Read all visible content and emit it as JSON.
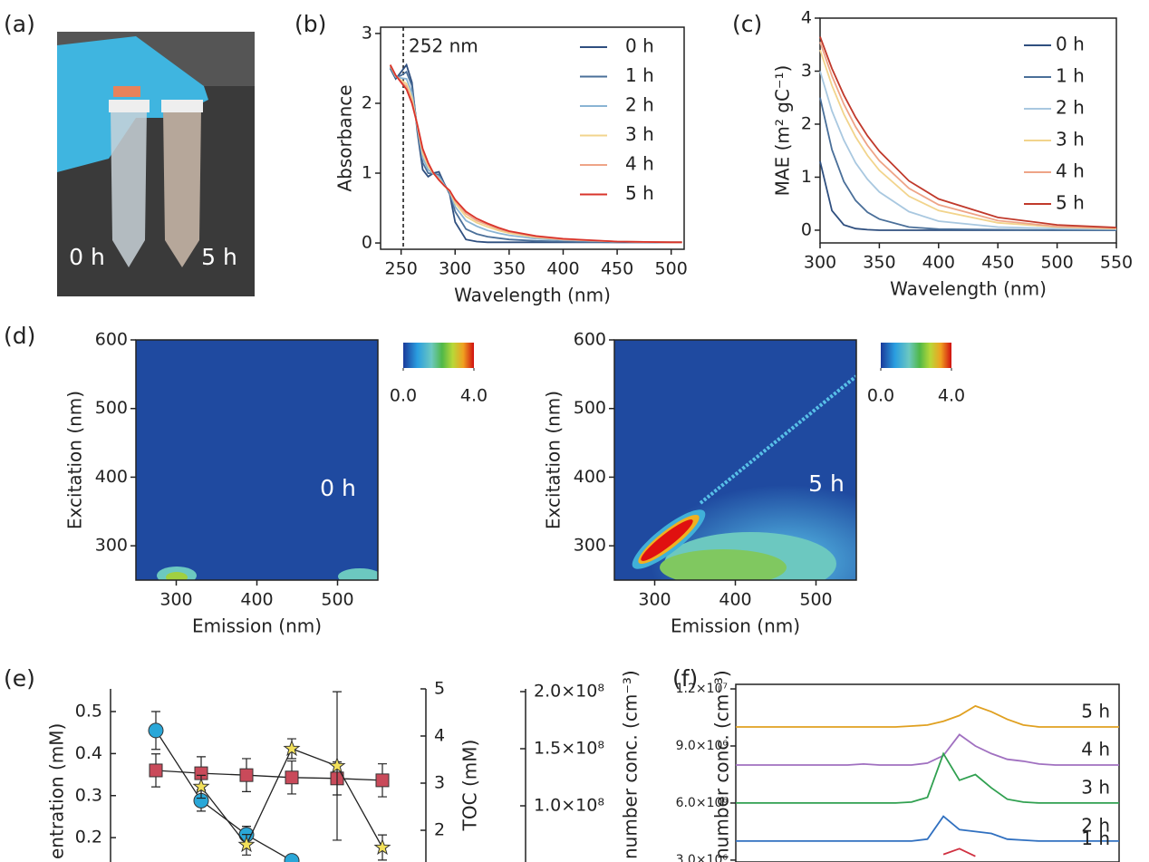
{
  "photo": {
    "panel": "(a)",
    "labels": [
      "0 h",
      "5 h"
    ]
  },
  "chart_data": [
    {
      "type": "line",
      "panel": "(b)",
      "xlabel": "Wavelength (nm)",
      "ylabel": "Absorbance",
      "annotation": "252 nm",
      "marker_line": 252,
      "x": [
        240,
        245,
        250,
        255,
        260,
        265,
        270,
        275,
        280,
        285,
        290,
        295,
        300,
        310,
        320,
        330,
        340,
        350,
        375,
        400,
        450,
        500,
        510
      ],
      "xlim": [
        231,
        512
      ],
      "xticks": [
        250,
        300,
        350,
        400,
        450,
        500
      ],
      "ylim": [
        -0.09,
        3.09
      ],
      "yticks": [
        0,
        1,
        2,
        3
      ],
      "series": [
        {
          "name": "0 h",
          "color": "#2f4f7f",
          "values": [
            2.5,
            2.35,
            2.45,
            2.55,
            2.3,
            1.6,
            1.05,
            0.95,
            1.0,
            1.02,
            0.85,
            0.7,
            0.3,
            0.05,
            0.02,
            0.01,
            0.01,
            0.01,
            0.01,
            0.01,
            0.01,
            0.01,
            0.01
          ]
        },
        {
          "name": "1 h",
          "color": "#4a6f99",
          "values": [
            2.52,
            2.37,
            2.4,
            2.45,
            2.25,
            1.65,
            1.15,
            1.0,
            0.99,
            0.98,
            0.84,
            0.72,
            0.45,
            0.2,
            0.13,
            0.09,
            0.07,
            0.05,
            0.03,
            0.02,
            0.01,
            0.01,
            0.01
          ]
        },
        {
          "name": "2 h",
          "color": "#8ab4d4",
          "values": [
            2.53,
            2.38,
            2.36,
            2.35,
            2.15,
            1.66,
            1.22,
            1.05,
            0.99,
            0.95,
            0.83,
            0.73,
            0.52,
            0.32,
            0.24,
            0.18,
            0.14,
            0.11,
            0.06,
            0.04,
            0.02,
            0.01,
            0.01
          ]
        },
        {
          "name": "3 h",
          "color": "#f2d48c",
          "values": [
            2.54,
            2.39,
            2.33,
            2.28,
            2.08,
            1.68,
            1.28,
            1.1,
            0.99,
            0.92,
            0.82,
            0.74,
            0.57,
            0.38,
            0.29,
            0.23,
            0.18,
            0.14,
            0.08,
            0.05,
            0.02,
            0.01,
            0.01
          ]
        },
        {
          "name": "4 h",
          "color": "#eea487",
          "values": [
            2.55,
            2.4,
            2.31,
            2.24,
            2.03,
            1.69,
            1.32,
            1.13,
            1.0,
            0.91,
            0.82,
            0.75,
            0.6,
            0.42,
            0.32,
            0.26,
            0.2,
            0.16,
            0.09,
            0.05,
            0.02,
            0.01,
            0.01
          ]
        },
        {
          "name": "5 h",
          "color": "#d9342b",
          "values": [
            2.55,
            2.4,
            2.3,
            2.2,
            2.0,
            1.7,
            1.35,
            1.15,
            1.0,
            0.9,
            0.82,
            0.75,
            0.62,
            0.45,
            0.35,
            0.28,
            0.22,
            0.17,
            0.1,
            0.06,
            0.02,
            0.01,
            0.01
          ]
        }
      ]
    },
    {
      "type": "line",
      "panel": "(c)",
      "xlabel": "Wavelength (nm)",
      "ylabel": "MAE (m² gC⁻¹)",
      "x": [
        300,
        310,
        320,
        330,
        340,
        350,
        375,
        400,
        450,
        500,
        550
      ],
      "xlim": [
        300,
        550
      ],
      "xticks": [
        300,
        350,
        400,
        450,
        500,
        550
      ],
      "ylim": [
        -0.24,
        4
      ],
      "yticks": [
        0,
        1,
        2,
        3,
        4
      ],
      "series": [
        {
          "name": "0 h",
          "color": "#2f4f7f",
          "values": [
            1.3,
            0.37,
            0.1,
            0.03,
            0.01,
            0,
            0,
            0,
            0,
            0,
            0
          ]
        },
        {
          "name": "1 h",
          "color": "#4a6f99",
          "values": [
            2.5,
            1.52,
            0.92,
            0.56,
            0.34,
            0.21,
            0.06,
            0.02,
            0.01,
            0,
            0
          ]
        },
        {
          "name": "2 h",
          "color": "#a9c8e0",
          "values": [
            3.0,
            2.25,
            1.7,
            1.27,
            0.96,
            0.72,
            0.35,
            0.17,
            0.06,
            0.03,
            0.02
          ]
        },
        {
          "name": "3 h",
          "color": "#f2d48c",
          "values": [
            3.4,
            2.73,
            2.19,
            1.76,
            1.41,
            1.13,
            0.64,
            0.37,
            0.14,
            0.06,
            0.03
          ]
        },
        {
          "name": "4 h",
          "color": "#eea487",
          "values": [
            3.55,
            2.91,
            2.38,
            1.95,
            1.6,
            1.31,
            0.79,
            0.48,
            0.18,
            0.07,
            0.04
          ]
        },
        {
          "name": "5 h",
          "color": "#c0392b",
          "values": [
            3.65,
            3.05,
            2.55,
            2.13,
            1.78,
            1.49,
            0.93,
            0.59,
            0.24,
            0.1,
            0.05
          ]
        }
      ]
    },
    {
      "type": "heatmap",
      "panel": "(d)",
      "label": "0 h",
      "xlabel": "Emission (nm)",
      "ylabel": "Excitation (nm)",
      "xlim": [
        250,
        550
      ],
      "xticks": [
        300,
        400,
        500
      ],
      "ylim": [
        250,
        600
      ],
      "yticks": [
        300,
        400,
        500,
        600
      ],
      "clim": [
        0,
        4
      ],
      "cticks": [
        {
          "value": 0,
          "label": "0.0"
        },
        {
          "value": 4,
          "label": "4.0"
        }
      ]
    },
    {
      "type": "heatmap",
      "label": "5 h",
      "xlabel": "Emission (nm)",
      "ylabel": "Excitation (nm)",
      "xlim": [
        250,
        550
      ],
      "xticks": [
        300,
        400,
        500
      ],
      "ylim": [
        250,
        600
      ],
      "yticks": [
        300,
        400,
        500,
        600
      ],
      "clim": [
        0,
        4
      ],
      "cticks": [
        {
          "value": 0,
          "label": "0.0"
        },
        {
          "value": 4,
          "label": "4.0"
        }
      ]
    },
    {
      "type": "scatter",
      "panel": "(e)",
      "ylabel": "entration (mM)",
      "y2label": "TOC (mM)",
      "y3label": "number conc. (cm⁻³)",
      "x": [
        0,
        1,
        2,
        3,
        4,
        5
      ],
      "xlim": [
        -1,
        6
      ],
      "ylim": [
        0.142,
        0.554
      ],
      "yticks": [
        0.2,
        0.3,
        0.4,
        0.5
      ],
      "y2lim": [
        1.327,
        5
      ],
      "y2ticks": [
        2,
        3,
        4,
        5
      ],
      "y3lim": [
        50800000,
        202400000
      ],
      "y3ticks": [
        {
          "value": 100000000,
          "label": "1.0×10⁸"
        },
        {
          "value": 150000000,
          "label": "1.5×10⁸"
        },
        {
          "value": 200000000,
          "label": "2.0×10⁸"
        }
      ],
      "series": [
        {
          "marker": "circle",
          "color": "#2aa7d8",
          "axis": "y",
          "values": [
            0.455,
            0.288,
            0.207,
            0.145,
            null,
            null
          ],
          "errors": [
            0.045,
            0.025,
            0.02,
            null,
            null,
            null
          ]
        },
        {
          "marker": "square",
          "color": "#c94a5a",
          "axis": "y2",
          "values": [
            3.27,
            3.21,
            3.17,
            3.12,
            3.1,
            3.06
          ],
          "errors": [
            0.35,
            0.35,
            0.35,
            0.35,
            0.35,
            0.35
          ]
        },
        {
          "marker": "star",
          "color": "#f2e05a",
          "axis": "y3",
          "values": [
            null,
            116700000,
            65900000,
            150000000,
            134900000,
            63500000
          ],
          "errors": [
            null,
            10000000,
            9000000,
            8700000,
            65000000,
            11000000
          ]
        }
      ]
    },
    {
      "type": "line",
      "panel": "(f)",
      "ylabel": "number conc. (cm⁻³)",
      "x": [
        0,
        1,
        2,
        3,
        4,
        5,
        6,
        7,
        8,
        9,
        10,
        11,
        12,
        13,
        14,
        15,
        16,
        17,
        18,
        19,
        20,
        21,
        22,
        23,
        24
      ],
      "xlim": [
        0,
        24
      ],
      "ylim": [
        2900000,
        12240000
      ],
      "yticks": [
        {
          "value": 3000000,
          "label": "3.0×10⁶"
        },
        {
          "value": 6000000,
          "label": "6.0×10⁶"
        },
        {
          "value": 9000000,
          "label": "9.0×10⁶"
        },
        {
          "value": 12000000,
          "label": "1.2×10⁷"
        }
      ],
      "series": [
        {
          "name": "5  h",
          "color": "#e0a020",
          "values": [
            10000000,
            10000000,
            10000000,
            10000000,
            10000000,
            10000000,
            10000000,
            10000000,
            10000000,
            10000000,
            10000000,
            10050000,
            10100000,
            10300000,
            10600000,
            11100000,
            10800000,
            10400000,
            10100000,
            10000000,
            10000000,
            10000000,
            10000000,
            10000000,
            10000000
          ]
        },
        {
          "name": "4  h",
          "color": "#a070c0",
          "values": [
            8000000,
            8000000,
            8000000,
            8000000,
            8000000,
            8000000,
            8000000,
            8000000,
            8050000,
            8000000,
            8000000,
            8000000,
            8100000,
            8500000,
            9600000,
            9000000,
            8600000,
            8300000,
            8200000,
            8050000,
            8000000,
            8000000,
            8000000,
            8000000,
            8000000
          ]
        },
        {
          "name": "3  h",
          "color": "#30a050",
          "values": [
            6000000,
            6000000,
            6000000,
            6000000,
            6000000,
            6000000,
            6000000,
            6000000,
            6000000,
            6000000,
            6000000,
            6050000,
            6300000,
            8600000,
            7200000,
            7500000,
            6800000,
            6200000,
            6050000,
            6000000,
            6000000,
            6000000,
            6000000,
            6000000,
            6000000
          ]
        },
        {
          "name": "2  h",
          "color": "#3070c0",
          "values": [
            4000000,
            4000000,
            4000000,
            4000000,
            4000000,
            4000000,
            4000000,
            4000000,
            4000000,
            4000000,
            4000000,
            4000000,
            4100000,
            5300000,
            4600000,
            4500000,
            4400000,
            4100000,
            4050000,
            4000000,
            4000000,
            4000000,
            4000000,
            4000000,
            4000000
          ]
        },
        {
          "name": "1  h",
          "color": "#d03040",
          "values": [
            null,
            null,
            null,
            null,
            null,
            null,
            null,
            null,
            null,
            null,
            null,
            null,
            null,
            3300000,
            3600000,
            3200000,
            null,
            null,
            null,
            null,
            null,
            null,
            null,
            null,
            null
          ]
        }
      ]
    }
  ]
}
